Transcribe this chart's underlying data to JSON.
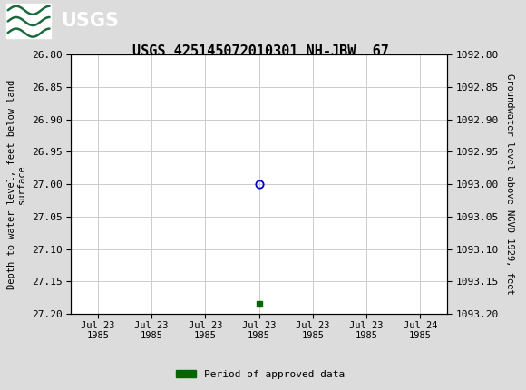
{
  "title": "USGS 425145072010301 NH-JBW  67",
  "title_fontsize": 11,
  "header_color": "#1a6b3c",
  "bg_color": "#dcdcdc",
  "plot_bg_color": "#ffffff",
  "grid_color": "#cccccc",
  "left_ylabel": "Depth to water level, feet below land\nsurface",
  "right_ylabel": "Groundwater level above NGVD 1929, feet",
  "ylim_left": [
    26.8,
    27.2
  ],
  "ylim_right": [
    1092.8,
    1093.2
  ],
  "yticks_left": [
    26.8,
    26.85,
    26.9,
    26.95,
    27.0,
    27.05,
    27.1,
    27.15,
    27.2
  ],
  "yticks_right": [
    1092.8,
    1092.85,
    1092.9,
    1092.95,
    1093.0,
    1093.05,
    1093.1,
    1093.15,
    1093.2
  ],
  "font_family": "monospace",
  "data_point_x": 3.0,
  "data_point_y": 27.0,
  "data_point_color": "#0000cc",
  "green_marker_x": 3.0,
  "green_marker_y": 27.185,
  "green_marker_color": "#006600",
  "legend_label": "Period of approved data",
  "legend_color": "#006600",
  "xtick_positions": [
    0,
    1,
    2,
    3,
    4,
    5,
    6
  ],
  "xtick_labels": [
    "Jul 23\n1985",
    "Jul 23\n1985",
    "Jul 23\n1985",
    "Jul 23\n1985",
    "Jul 23\n1985",
    "Jul 23\n1985",
    "Jul 24\n1985"
  ]
}
